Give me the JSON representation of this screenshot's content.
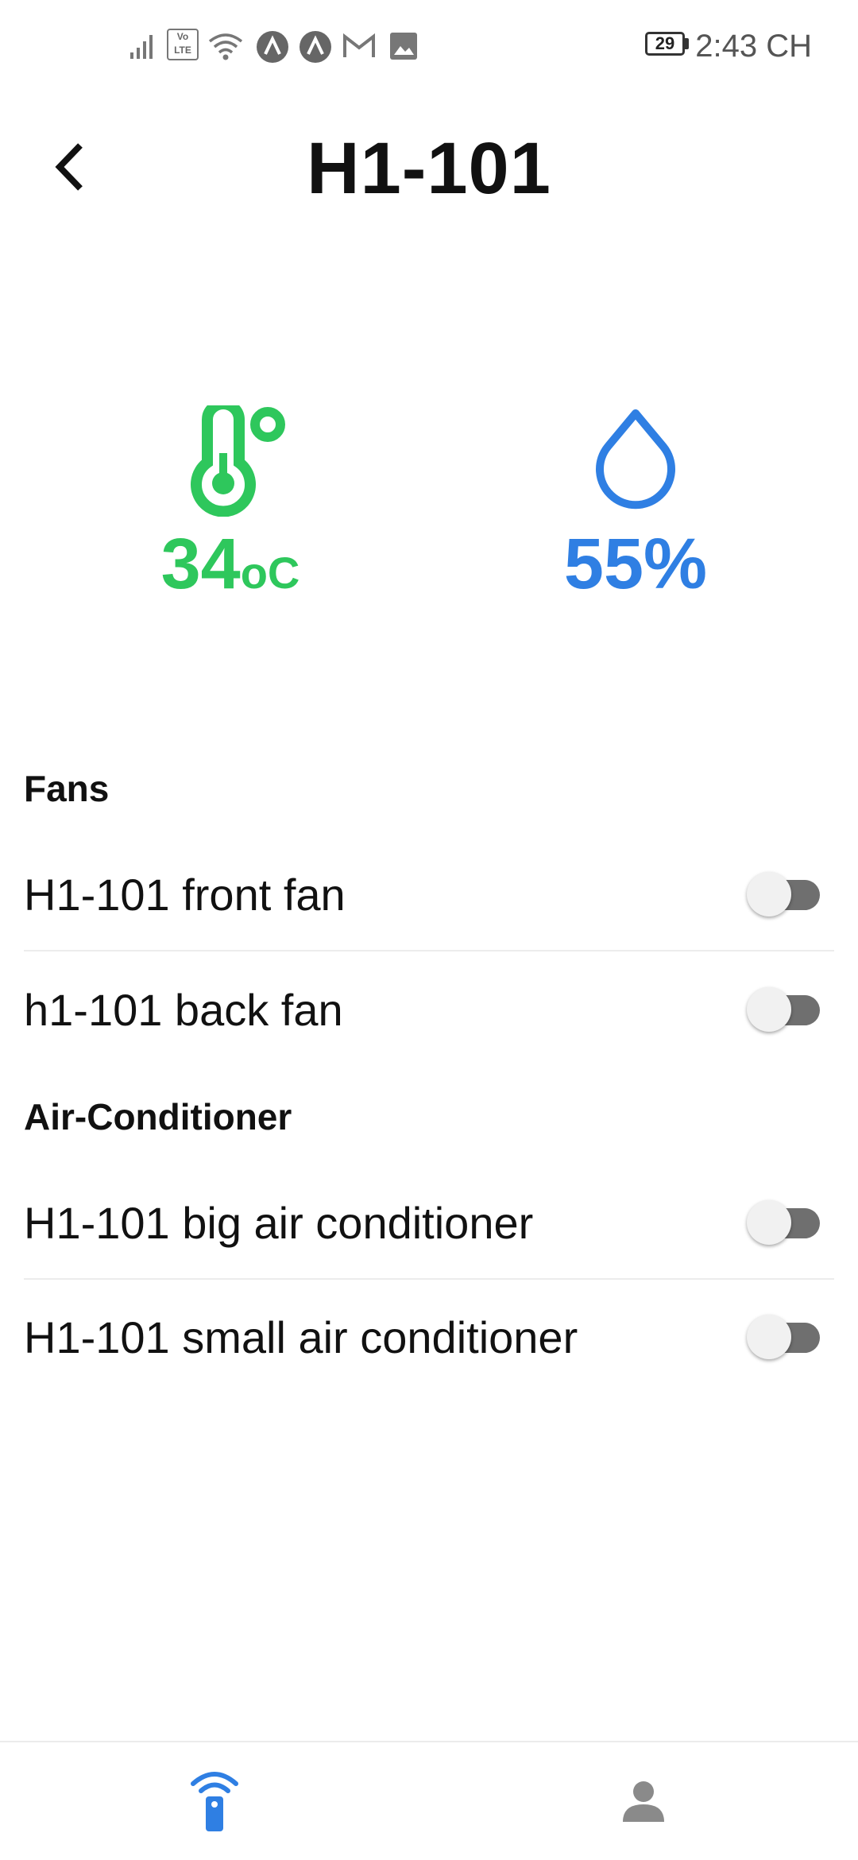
{
  "status_bar": {
    "battery_level": "29",
    "time": "2:43 CH",
    "network_label": "Vo LTE"
  },
  "header": {
    "title": "H1-101",
    "back_icon": "chevron-left-icon"
  },
  "sensors": {
    "temperature": {
      "value": "34",
      "unit": "oC",
      "icon": "thermometer-icon",
      "color": "#2ec75c"
    },
    "humidity": {
      "value": "55%",
      "icon": "water-drop-icon",
      "color": "#2f7fe3"
    }
  },
  "sections": {
    "fans": {
      "title": "Fans",
      "devices": [
        {
          "name": "H1-101 front fan",
          "on": false
        },
        {
          "name": "h1-101 back fan",
          "on": false
        }
      ]
    },
    "air_conditioner": {
      "title": "Air-Conditioner",
      "devices": [
        {
          "name": "H1-101 big air conditioner",
          "on": false
        },
        {
          "name": "H1-101 small air conditioner",
          "on": false
        }
      ]
    }
  },
  "bottom_nav": {
    "items": [
      {
        "icon": "remote-control-icon",
        "active": true,
        "color": "#2f7fe3"
      },
      {
        "icon": "person-icon",
        "active": false,
        "color": "#8a8a8a"
      }
    ]
  }
}
